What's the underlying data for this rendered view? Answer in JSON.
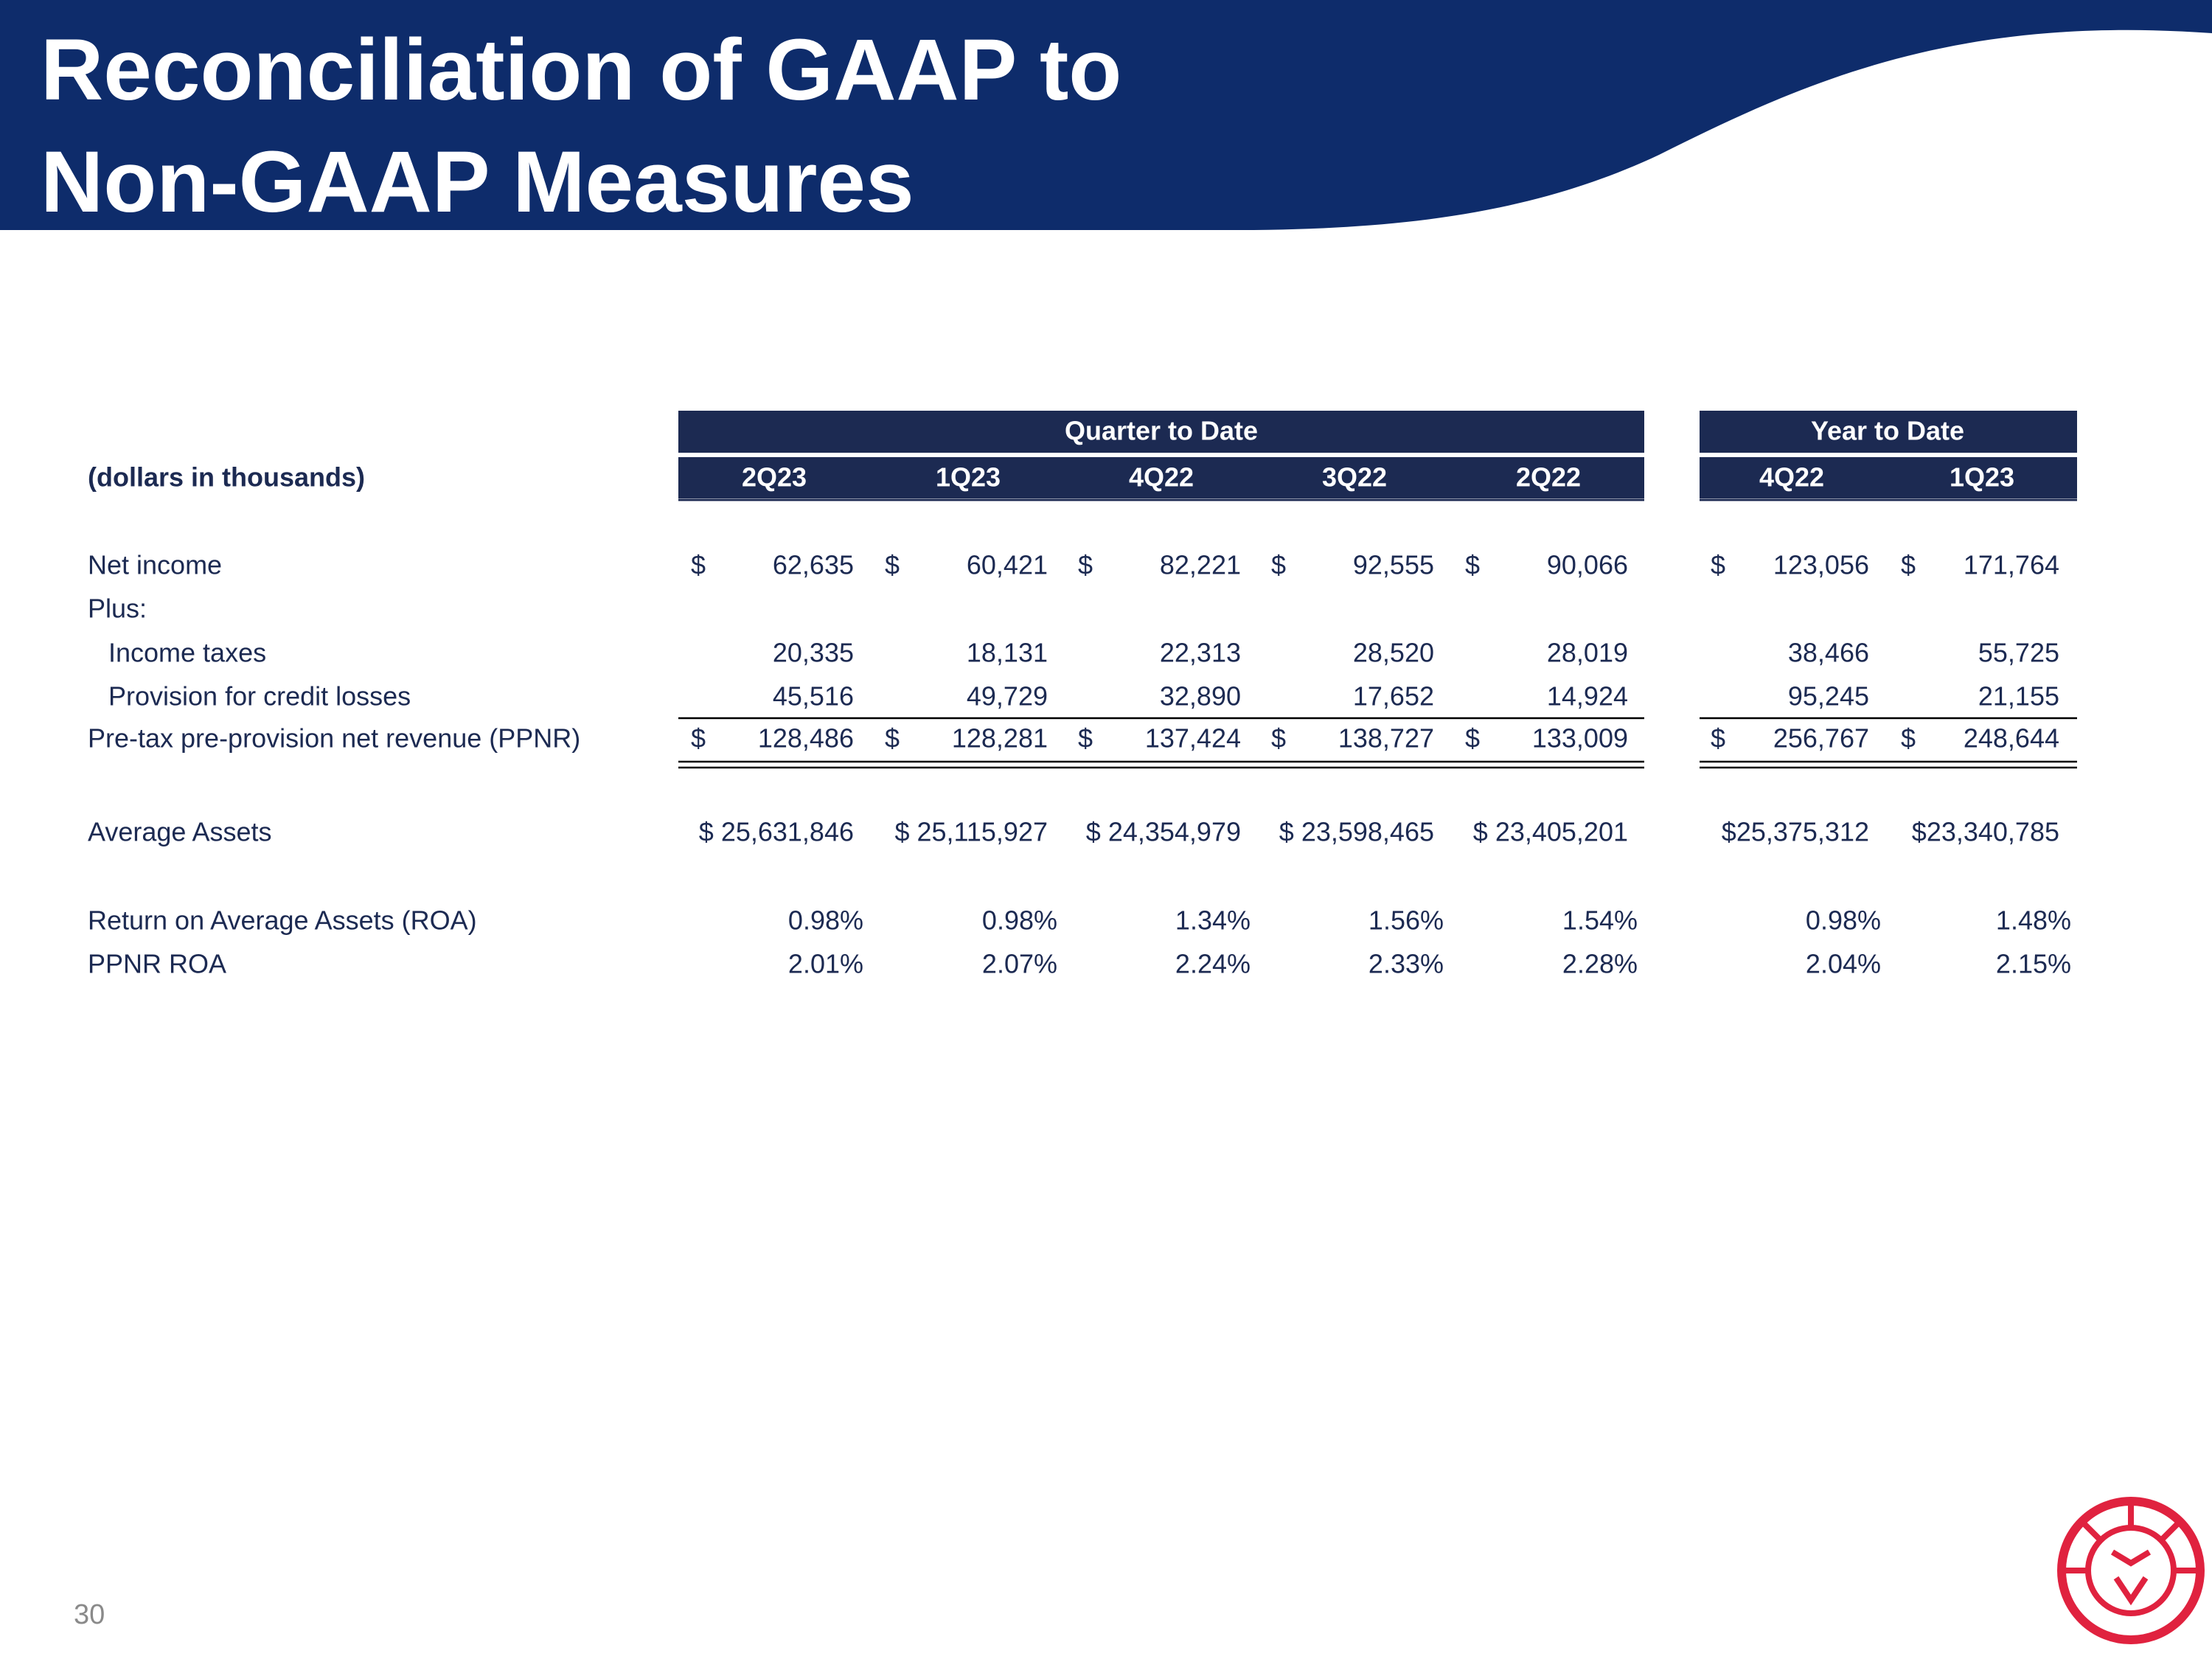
{
  "header": {
    "title_line1": "Reconciliation of GAAP to",
    "title_line2": "Non-GAAP Measures"
  },
  "table": {
    "group_headers": [
      "Quarter to Date",
      "Year to Date"
    ],
    "unit_label": "(dollars in thousands)",
    "columns": [
      "2Q23",
      "1Q23",
      "4Q22",
      "3Q22",
      "2Q22",
      "4Q22",
      "1Q23"
    ],
    "rows": [
      {
        "label": "Net income",
        "currency": "$",
        "values": [
          "62,635",
          "60,421",
          "82,221",
          "92,555",
          "90,066",
          "123,056",
          "171,764"
        ]
      },
      {
        "label": "Plus:"
      },
      {
        "label": "Income taxes",
        "values": [
          "20,335",
          "18,131",
          "22,313",
          "28,520",
          "28,019",
          "38,466",
          "55,725"
        ]
      },
      {
        "label": "Provision for credit losses",
        "values": [
          "45,516",
          "49,729",
          "32,890",
          "17,652",
          "14,924",
          "95,245",
          "21,155"
        ]
      },
      {
        "label": "Pre-tax pre-provision net revenue (PPNR)",
        "currency": "$",
        "values": [
          "128,486",
          "128,281",
          "137,424",
          "138,727",
          "133,009",
          "256,767",
          "248,644"
        ]
      },
      {
        "label": "Average Assets",
        "values": [
          "$ 25,631,846",
          "$ 25,115,927",
          "$ 24,354,979",
          "$ 23,598,465",
          "$ 23,405,201",
          "$25,375,312",
          "$23,340,785"
        ]
      },
      {
        "label": "Return on Average Assets (ROA)",
        "values": [
          "0.98%",
          "0.98%",
          "1.34%",
          "1.56%",
          "1.54%",
          "0.98%",
          "1.48%"
        ]
      },
      {
        "label": "PPNR ROA",
        "values": [
          "2.01%",
          "2.07%",
          "2.24%",
          "2.33%",
          "2.28%",
          "2.04%",
          "2.15%"
        ]
      }
    ]
  },
  "page_number": "30"
}
